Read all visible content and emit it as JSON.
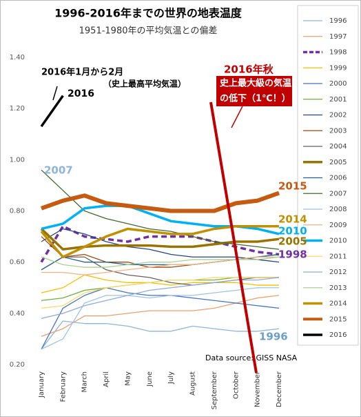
{
  "chart_data": {
    "type": "line",
    "title": "1996-2016年までの世界の地表温度",
    "subtitle": "1951-1980年の平均気温との偏差",
    "categories": [
      "January",
      "February",
      "March",
      "April",
      "May",
      "June",
      "July",
      "August",
      "September",
      "October",
      "November",
      "December"
    ],
    "ylim": [
      0.2,
      1.4
    ],
    "yticks": [
      {
        "value": 0.2,
        "label": "0.20"
      },
      {
        "value": 0.4,
        "label": "0.40"
      },
      {
        "value": 0.6,
        "label": "0.60"
      },
      {
        "value": 0.8,
        "label": "0.80"
      },
      {
        "value": 1.0,
        "label": "1.00"
      },
      {
        "value": 1.2,
        "label": "1.20"
      },
      {
        "value": 1.4,
        "label": "1.40"
      }
    ],
    "grid": false,
    "legend": "right",
    "series": [
      {
        "name": "1996",
        "color": "#8fb4d9",
        "width": 1.3,
        "values": [
          0.26,
          0.37,
          0.36,
          0.36,
          0.35,
          0.33,
          0.33,
          0.35,
          0.34,
          0.33,
          0.33,
          0.34
        ]
      },
      {
        "name": "1997",
        "color": "#e8a070",
        "width": 1.3,
        "values": [
          0.31,
          0.34,
          0.39,
          0.39,
          0.4,
          0.41,
          0.41,
          0.41,
          0.42,
          0.44,
          0.46,
          0.47
        ]
      },
      {
        "name": "1998",
        "color": "#7030a0",
        "width": 3.5,
        "dash": true,
        "values": [
          0.6,
          0.74,
          0.7,
          0.69,
          0.68,
          0.7,
          0.7,
          0.7,
          0.68,
          0.66,
          0.64,
          0.63
        ]
      },
      {
        "name": "1999",
        "color": "#f0c000",
        "width": 1.3,
        "values": [
          0.48,
          0.5,
          0.55,
          0.53,
          0.52,
          0.52,
          0.51,
          0.52,
          0.52,
          0.52,
          0.51,
          0.51
        ]
      },
      {
        "name": "2000",
        "color": "#4472c4",
        "width": 1.3,
        "values": [
          0.26,
          0.42,
          0.47,
          0.5,
          0.48,
          0.47,
          0.47,
          0.46,
          0.45,
          0.44,
          0.43,
          0.42
        ]
      },
      {
        "name": "2001",
        "color": "#70ad47",
        "width": 1.3,
        "values": [
          0.45,
          0.46,
          0.49,
          0.5,
          0.51,
          0.52,
          0.53,
          0.53,
          0.53,
          0.54,
          0.54,
          0.54
        ]
      },
      {
        "name": "2002",
        "color": "#264478",
        "width": 1.3,
        "values": [
          0.68,
          0.73,
          0.71,
          0.68,
          0.66,
          0.65,
          0.63,
          0.62,
          0.62,
          0.62,
          0.61,
          0.6
        ]
      },
      {
        "name": "2003",
        "color": "#9e480e",
        "width": 1.3,
        "values": [
          0.7,
          0.62,
          0.63,
          0.6,
          0.6,
          0.58,
          0.58,
          0.59,
          0.6,
          0.61,
          0.62,
          0.63
        ]
      },
      {
        "name": "2004",
        "color": "#636363",
        "width": 1.3,
        "values": [
          0.57,
          0.62,
          0.62,
          0.57,
          0.55,
          0.54,
          0.52,
          0.51,
          0.52,
          0.53,
          0.54,
          0.54
        ]
      },
      {
        "name": "2005",
        "color": "#997300",
        "width": 3.5,
        "values": [
          0.73,
          0.65,
          0.66,
          0.665,
          0.665,
          0.665,
          0.66,
          0.66,
          0.67,
          0.68,
          0.68,
          0.69
        ]
      },
      {
        "name": "2006",
        "color": "#255e91",
        "width": 1.3,
        "values": [
          0.57,
          0.62,
          0.6,
          0.6,
          0.59,
          0.59,
          0.59,
          0.59,
          0.6,
          0.61,
          0.62,
          0.63
        ]
      },
      {
        "name": "2007",
        "color": "#43682b",
        "width": 1.3,
        "values": [
          0.96,
          0.88,
          0.8,
          0.77,
          0.75,
          0.73,
          0.72,
          0.7,
          0.68,
          0.67,
          0.66,
          0.65
        ]
      },
      {
        "name": "2008",
        "color": "#9dc3e6",
        "width": 1.3,
        "values": [
          0.26,
          0.3,
          0.44,
          0.47,
          0.47,
          0.46,
          0.47,
          0.47,
          0.48,
          0.49,
          0.5,
          0.5
        ]
      },
      {
        "name": "2009",
        "color": "#f4b183",
        "width": 1.3,
        "values": [
          0.56,
          0.56,
          0.55,
          0.56,
          0.57,
          0.58,
          0.59,
          0.59,
          0.6,
          0.61,
          0.62,
          0.62
        ]
      },
      {
        "name": "2010",
        "color": "#00b0f0",
        "width": 3.5,
        "values": [
          0.73,
          0.75,
          0.81,
          0.82,
          0.82,
          0.79,
          0.76,
          0.75,
          0.74,
          0.74,
          0.73,
          0.71
        ]
      },
      {
        "name": "2011",
        "color": "#ffd966",
        "width": 1.3,
        "values": [
          0.42,
          0.43,
          0.48,
          0.5,
          0.51,
          0.52,
          0.53,
          0.53,
          0.54,
          0.54,
          0.54,
          0.54
        ]
      },
      {
        "name": "2012",
        "color": "#8faadc",
        "width": 1.3,
        "values": [
          0.38,
          0.4,
          0.43,
          0.45,
          0.47,
          0.49,
          0.5,
          0.51,
          0.52,
          0.53,
          0.53,
          0.54
        ]
      },
      {
        "name": "2013",
        "color": "#a9d18e",
        "width": 1.3,
        "values": [
          0.62,
          0.59,
          0.58,
          0.58,
          0.59,
          0.6,
          0.6,
          0.61,
          0.61,
          0.61,
          0.61,
          0.62
        ]
      },
      {
        "name": "2014",
        "color": "#bf9000",
        "width": 3.5,
        "values": [
          0.72,
          0.62,
          0.66,
          0.7,
          0.73,
          0.72,
          0.71,
          0.71,
          0.73,
          0.74,
          0.74,
          0.74
        ]
      },
      {
        "name": "2015",
        "color": "#c55a11",
        "width": 6,
        "values": [
          0.81,
          0.84,
          0.86,
          0.83,
          0.82,
          0.81,
          0.8,
          0.8,
          0.8,
          0.83,
          0.84,
          0.87
        ]
      },
      {
        "name": "2016",
        "color": "#000000",
        "width": 3.5,
        "values": [
          1.13,
          1.25,
          null,
          null,
          null,
          null,
          null,
          null,
          null,
          null,
          null,
          null
        ]
      }
    ],
    "annotations": [
      "2016年1月から2月",
      "（史上最高平均気温）",
      "2016",
      "2016年秋",
      "史上最大級の気温",
      "の低下（1℃！）",
      "Data source: GISS NASA",
      "2007",
      "2015",
      "2014",
      "2010",
      "2005",
      "1998",
      "1996"
    ]
  }
}
